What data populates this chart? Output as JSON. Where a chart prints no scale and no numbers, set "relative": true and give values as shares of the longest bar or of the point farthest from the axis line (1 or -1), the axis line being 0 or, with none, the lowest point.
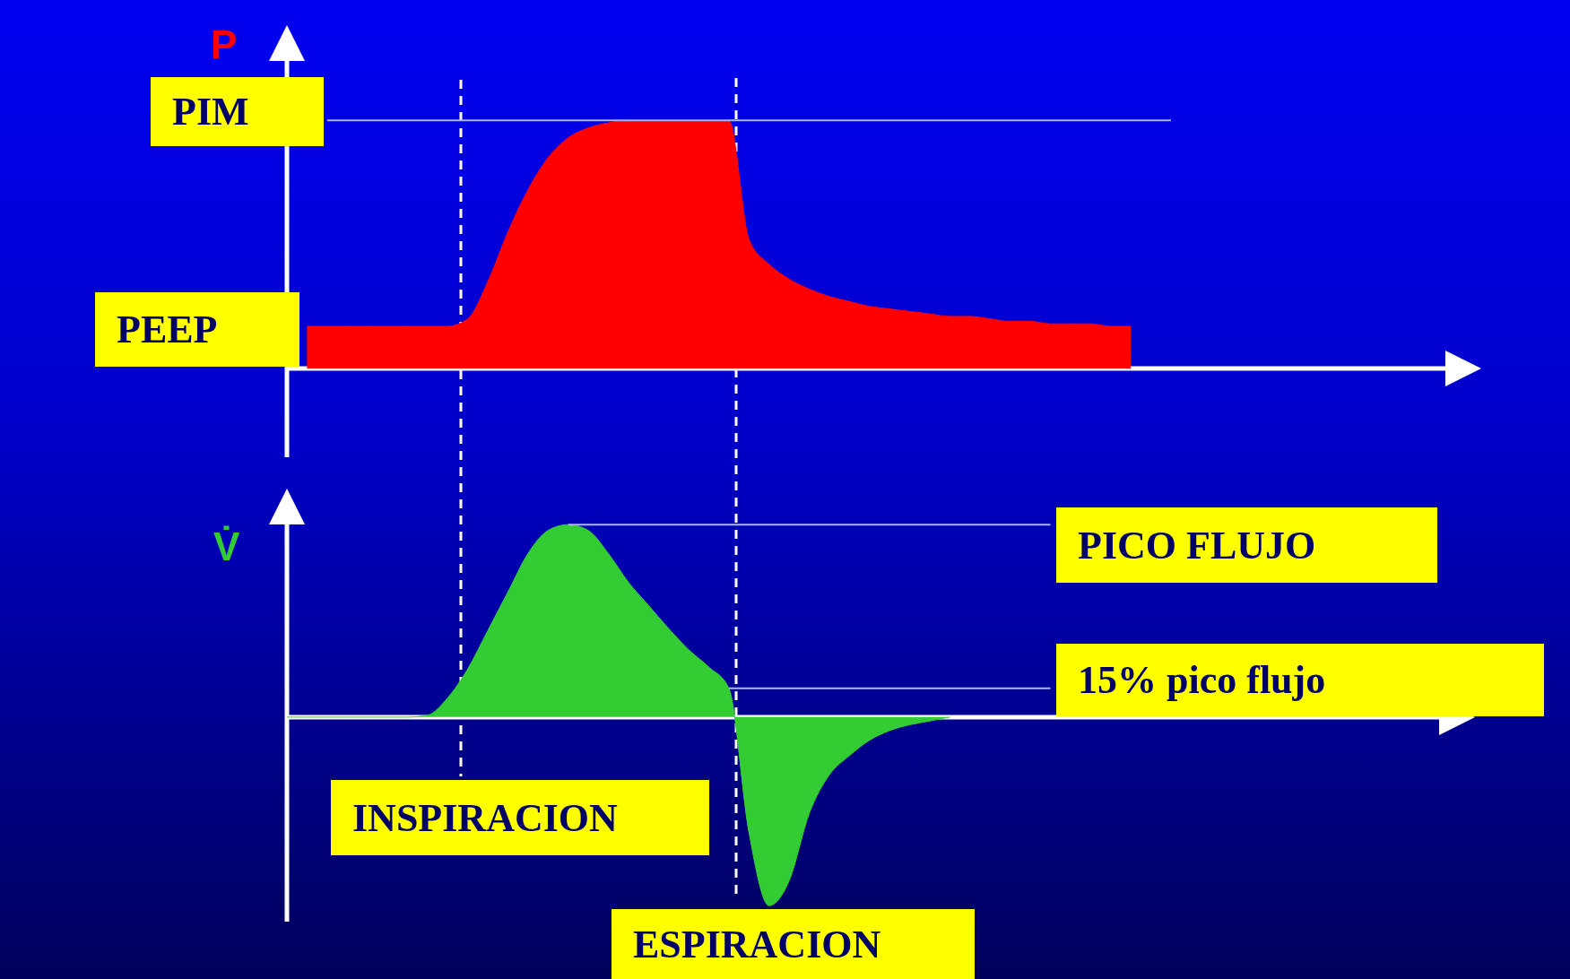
{
  "chart_data": [
    {
      "type": "area",
      "ylabel": "P",
      "relative": true,
      "categories": [
        null,
        null,
        null,
        null,
        null,
        null,
        null,
        null,
        null,
        null,
        null,
        null,
        null,
        null,
        null,
        null,
        null,
        null,
        null,
        null,
        null,
        null,
        null,
        null,
        null,
        null,
        null,
        null,
        null,
        null,
        null,
        null,
        null,
        null,
        null,
        null,
        null,
        null,
        null,
        null,
        null,
        null,
        null,
        null,
        null,
        null,
        null,
        null,
        null,
        null,
        null,
        null,
        null,
        null,
        null,
        null,
        null,
        null,
        null,
        null
      ],
      "series": [
        {
          "color": "#ff0000",
          "values": [
            null,
            0.17,
            0.17,
            0.17,
            0.17,
            0.17,
            0.17,
            0.17,
            0.17,
            0.2,
            0.35,
            0.55,
            0.72,
            0.85,
            0.93,
            0.97,
            0.99,
            1,
            1,
            1,
            1,
            1,
            1,
            0.52,
            0.42,
            0.36,
            0.32,
            0.29,
            0.27,
            0.25,
            0.24,
            0.23,
            0.22,
            0.21,
            0.21,
            0.2,
            0.19,
            0.19,
            0.18,
            0.18,
            0.18,
            0.17,
            0.17,
            null,
            null,
            null,
            null,
            null,
            null,
            null,
            null,
            null,
            null,
            null,
            null,
            null,
            null,
            null,
            null,
            null
          ]
        }
      ],
      "ref_lines": [
        {
          "axis": "y",
          "value": 1,
          "label": "PIM"
        }
      ],
      "annotations": [
        "PEEP"
      ]
    },
    {
      "type": "area",
      "ylabel": "V̇",
      "relative": true,
      "categories": [
        null,
        null,
        null,
        null,
        null,
        null,
        null,
        null,
        null,
        null,
        null,
        null,
        null,
        null,
        null,
        null,
        null,
        null,
        null,
        null,
        null,
        null,
        null,
        null,
        null,
        null,
        null,
        null,
        null,
        null,
        null,
        null,
        null,
        null,
        null,
        null,
        null,
        null,
        null,
        null,
        null,
        null,
        null,
        null,
        null,
        null,
        null,
        null,
        null,
        null,
        null,
        null,
        null,
        null,
        null,
        null,
        null,
        null,
        null,
        null
      ],
      "series": [
        {
          "color": "#33cc33",
          "values": [
            0,
            0,
            0,
            0,
            0,
            0,
            0,
            0.01,
            0.1,
            0.25,
            0.45,
            0.65,
            0.85,
            0.97,
            1,
            0.97,
            0.85,
            0.7,
            0.58,
            0.46,
            0.35,
            0.26,
            0.15,
            -0.6,
            -0.98,
            -0.85,
            -0.5,
            -0.3,
            -0.2,
            -0.12,
            -0.07,
            -0.04,
            -0.02,
            0,
            null,
            null,
            null,
            null,
            null,
            null,
            null,
            null,
            null,
            null,
            null,
            null,
            null,
            null,
            null,
            null,
            null,
            null,
            null,
            null,
            null,
            null,
            null,
            null,
            null,
            null
          ]
        }
      ],
      "ref_lines": [
        {
          "axis": "y",
          "value": 1,
          "label": "PICO FLUJO"
        },
        {
          "axis": "y",
          "value": 0.15,
          "label": "15% pico flujo"
        }
      ],
      "annotations": [
        "INSPIRACION",
        "ESPIRACION"
      ]
    }
  ]
}
